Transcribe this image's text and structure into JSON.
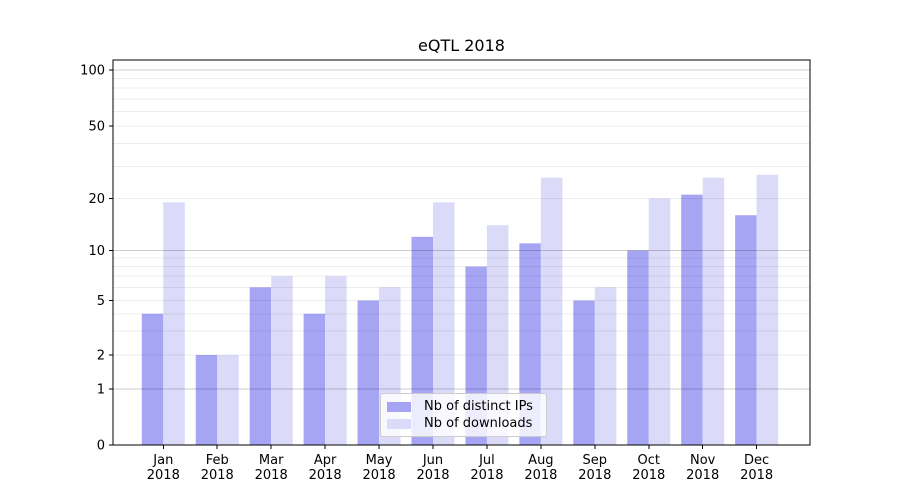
{
  "chart_data": {
    "type": "bar",
    "title": "eQTL 2018",
    "categories": [
      "Jan 2018",
      "Feb 2018",
      "Mar 2018",
      "Apr 2018",
      "May 2018",
      "Jun 2018",
      "Jul 2018",
      "Aug 2018",
      "Sep 2018",
      "Oct 2018",
      "Nov 2018",
      "Dec 2018"
    ],
    "series": [
      {
        "name": "Nb of distinct IPs",
        "color": "#a5a5f4",
        "values": [
          4,
          2,
          6,
          4,
          5,
          12,
          8,
          11,
          5,
          10,
          21,
          16
        ]
      },
      {
        "name": "Nb of downloads",
        "color": "#dbdbf9",
        "values": [
          19,
          2,
          7,
          7,
          6,
          19,
          14,
          26,
          6,
          20,
          26,
          27
        ]
      }
    ],
    "xlabel": "",
    "ylabel": "",
    "yticks": [
      0,
      1,
      2,
      5,
      10,
      20,
      50,
      100
    ],
    "ylim": [
      0,
      100
    ],
    "scale": "symlog",
    "grid": "horizontal, major at 1/10/100 plus light minor lines",
    "legend_position": "lower center, inside plot"
  }
}
